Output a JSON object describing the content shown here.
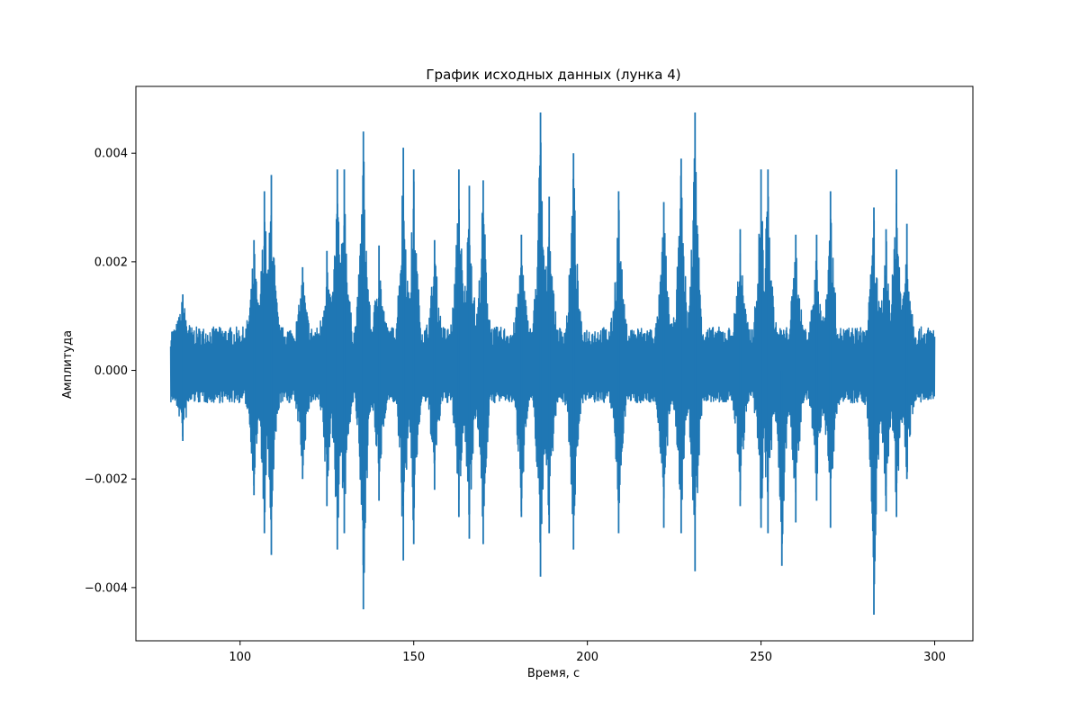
{
  "chart_data": {
    "type": "line",
    "title": "График исходных данных (лунка 4)",
    "xlabel": "Время, с",
    "ylabel": "Амплитуда",
    "xlim": [
      70,
      311
    ],
    "ylim": [
      -0.00498,
      0.00523
    ],
    "x_ticks": [
      100,
      150,
      200,
      250,
      300
    ],
    "x_tick_labels": [
      "100",
      "150",
      "200",
      "250",
      "300"
    ],
    "y_ticks": [
      -0.004,
      -0.002,
      0.0,
      0.002,
      0.004
    ],
    "y_tick_labels": [
      "−0.004",
      "−0.002",
      "0.000",
      "0.002",
      "0.004"
    ],
    "grid": false,
    "legend": "none",
    "series": [
      {
        "color": "#1f77b4",
        "x_range": [
          80,
          300
        ],
        "baseline_upper": 0.0008,
        "baseline_lower": -0.0006,
        "positive_peaks": [
          {
            "x": 83.5,
            "y": 0.0014
          },
          {
            "x": 104,
            "y": 0.0024
          },
          {
            "x": 107,
            "y": 0.0033
          },
          {
            "x": 109,
            "y": 0.0036
          },
          {
            "x": 118,
            "y": 0.0019
          },
          {
            "x": 125,
            "y": 0.0022
          },
          {
            "x": 128,
            "y": 0.0037
          },
          {
            "x": 130,
            "y": 0.0037
          },
          {
            "x": 135.5,
            "y": 0.0044
          },
          {
            "x": 140,
            "y": 0.0023
          },
          {
            "x": 147,
            "y": 0.0041
          },
          {
            "x": 150,
            "y": 0.0037
          },
          {
            "x": 156,
            "y": 0.0024
          },
          {
            "x": 163,
            "y": 0.0037
          },
          {
            "x": 166,
            "y": 0.0034
          },
          {
            "x": 170,
            "y": 0.0035
          },
          {
            "x": 181,
            "y": 0.0025
          },
          {
            "x": 186.5,
            "y": 0.00475
          },
          {
            "x": 189,
            "y": 0.0032
          },
          {
            "x": 196,
            "y": 0.004
          },
          {
            "x": 209,
            "y": 0.0033
          },
          {
            "x": 222,
            "y": 0.0031
          },
          {
            "x": 227,
            "y": 0.0039
          },
          {
            "x": 231,
            "y": 0.00475
          },
          {
            "x": 244,
            "y": 0.0026
          },
          {
            "x": 250,
            "y": 0.0037
          },
          {
            "x": 252,
            "y": 0.0037
          },
          {
            "x": 260,
            "y": 0.0025
          },
          {
            "x": 266,
            "y": 0.0025
          },
          {
            "x": 270,
            "y": 0.0033
          },
          {
            "x": 282.5,
            "y": 0.003
          },
          {
            "x": 286,
            "y": 0.0026
          },
          {
            "x": 289,
            "y": 0.0037
          },
          {
            "x": 292,
            "y": 0.0027
          }
        ],
        "negative_peaks": [
          {
            "x": 83.5,
            "y": -0.0013
          },
          {
            "x": 104,
            "y": -0.0023
          },
          {
            "x": 107,
            "y": -0.003
          },
          {
            "x": 109,
            "y": -0.0034
          },
          {
            "x": 118,
            "y": -0.002
          },
          {
            "x": 125,
            "y": -0.0025
          },
          {
            "x": 128,
            "y": -0.0033
          },
          {
            "x": 130,
            "y": -0.003
          },
          {
            "x": 135.5,
            "y": -0.0044
          },
          {
            "x": 140,
            "y": -0.0024
          },
          {
            "x": 147,
            "y": -0.0035
          },
          {
            "x": 150,
            "y": -0.0032
          },
          {
            "x": 156,
            "y": -0.0022
          },
          {
            "x": 163,
            "y": -0.0027
          },
          {
            "x": 166,
            "y": -0.0031
          },
          {
            "x": 170,
            "y": -0.0032
          },
          {
            "x": 181,
            "y": -0.0027
          },
          {
            "x": 186.5,
            "y": -0.0038
          },
          {
            "x": 189,
            "y": -0.003
          },
          {
            "x": 196,
            "y": -0.0033
          },
          {
            "x": 209,
            "y": -0.003
          },
          {
            "x": 222,
            "y": -0.0029
          },
          {
            "x": 227,
            "y": -0.003
          },
          {
            "x": 231,
            "y": -0.0037
          },
          {
            "x": 244,
            "y": -0.0025
          },
          {
            "x": 250,
            "y": -0.0029
          },
          {
            "x": 252,
            "y": -0.003
          },
          {
            "x": 256,
            "y": -0.0036
          },
          {
            "x": 260,
            "y": -0.0028
          },
          {
            "x": 266,
            "y": -0.0024
          },
          {
            "x": 270,
            "y": -0.0029
          },
          {
            "x": 282.5,
            "y": -0.0045
          },
          {
            "x": 286,
            "y": -0.0026
          },
          {
            "x": 289,
            "y": -0.0027
          },
          {
            "x": 292,
            "y": -0.002
          }
        ]
      }
    ]
  }
}
